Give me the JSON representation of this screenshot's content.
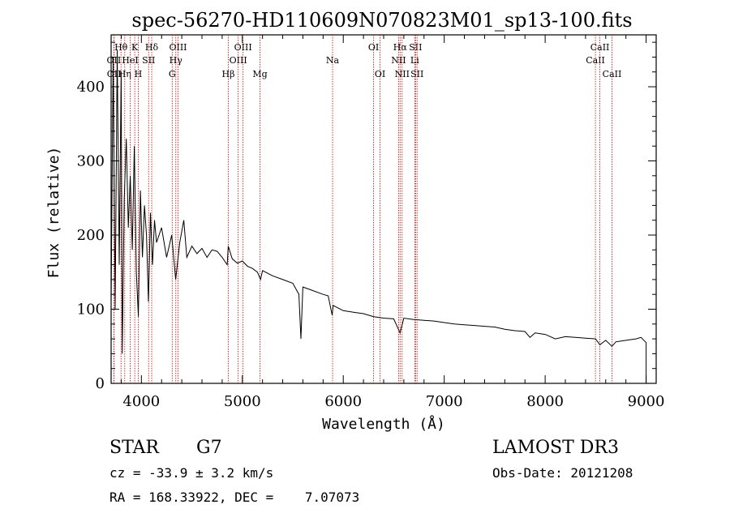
{
  "chart_data": {
    "type": "line",
    "title": "spec-56270-HD110609N070823M01_sp13-100.fits",
    "xlabel": "Wavelength (Å)",
    "ylabel": "Flux (relative)",
    "xlim": [
      3700,
      9100
    ],
    "ylim": [
      0,
      470
    ],
    "xticks": [
      4000,
      5000,
      6000,
      7000,
      8000,
      9000
    ],
    "yticks": [
      0,
      100,
      200,
      300,
      400
    ],
    "series": [
      {
        "name": "flux",
        "points": [
          [
            3700,
            110
          ],
          [
            3720,
            440
          ],
          [
            3740,
            100
          ],
          [
            3760,
            450
          ],
          [
            3780,
            160
          ],
          [
            3800,
            420
          ],
          [
            3810,
            40
          ],
          [
            3830,
            250
          ],
          [
            3850,
            330
          ],
          [
            3870,
            210
          ],
          [
            3890,
            280
          ],
          [
            3910,
            180
          ],
          [
            3930,
            320
          ],
          [
            3950,
            150
          ],
          [
            3970,
            90
          ],
          [
            3990,
            260
          ],
          [
            4010,
            170
          ],
          [
            4030,
            240
          ],
          [
            4050,
            200
          ],
          [
            4070,
            110
          ],
          [
            4090,
            230
          ],
          [
            4110,
            160
          ],
          [
            4130,
            220
          ],
          [
            4150,
            190
          ],
          [
            4200,
            210
          ],
          [
            4250,
            170
          ],
          [
            4300,
            200
          ],
          [
            4340,
            140
          ],
          [
            4380,
            190
          ],
          [
            4420,
            220
          ],
          [
            4450,
            170
          ],
          [
            4500,
            185
          ],
          [
            4550,
            175
          ],
          [
            4600,
            182
          ],
          [
            4650,
            170
          ],
          [
            4700,
            180
          ],
          [
            4750,
            178
          ],
          [
            4800,
            170
          ],
          [
            4850,
            160
          ],
          [
            4860,
            185
          ],
          [
            4900,
            168
          ],
          [
            4950,
            162
          ],
          [
            5000,
            165
          ],
          [
            5050,
            158
          ],
          [
            5100,
            155
          ],
          [
            5150,
            150
          ],
          [
            5180,
            140
          ],
          [
            5200,
            152
          ],
          [
            5300,
            145
          ],
          [
            5400,
            140
          ],
          [
            5500,
            135
          ],
          [
            5560,
            120
          ],
          [
            5580,
            60
          ],
          [
            5600,
            130
          ],
          [
            5700,
            125
          ],
          [
            5800,
            120
          ],
          [
            5850,
            118
          ],
          [
            5890,
            92
          ],
          [
            5900,
            105
          ],
          [
            6000,
            98
          ],
          [
            6100,
            96
          ],
          [
            6200,
            94
          ],
          [
            6300,
            90
          ],
          [
            6400,
            88
          ],
          [
            6500,
            87
          ],
          [
            6562,
            68
          ],
          [
            6600,
            88
          ],
          [
            6700,
            86
          ],
          [
            6800,
            85
          ],
          [
            6900,
            84
          ],
          [
            7000,
            82
          ],
          [
            7100,
            80
          ],
          [
            7200,
            79
          ],
          [
            7300,
            78
          ],
          [
            7400,
            77
          ],
          [
            7500,
            76
          ],
          [
            7600,
            73
          ],
          [
            7700,
            71
          ],
          [
            7800,
            70
          ],
          [
            7850,
            62
          ],
          [
            7900,
            68
          ],
          [
            8000,
            66
          ],
          [
            8100,
            60
          ],
          [
            8200,
            63
          ],
          [
            8300,
            62
          ],
          [
            8400,
            61
          ],
          [
            8500,
            60
          ],
          [
            8542,
            52
          ],
          [
            8600,
            58
          ],
          [
            8662,
            50
          ],
          [
            8700,
            56
          ],
          [
            8800,
            58
          ],
          [
            8900,
            60
          ],
          [
            8950,
            62
          ],
          [
            9000,
            55
          ],
          [
            9000,
            0
          ]
        ]
      }
    ],
    "line_markers": [
      {
        "label": "OII",
        "wavelength": 3727,
        "row": 2
      },
      {
        "label": "OII",
        "wavelength": 3729,
        "row": 3
      },
      {
        "label": "Hθ",
        "wavelength": 3798,
        "row": 1
      },
      {
        "label": "Hη",
        "wavelength": 3835,
        "row": 3
      },
      {
        "label": "HeI",
        "wavelength": 3889,
        "row": 2
      },
      {
        "label": "K",
        "wavelength": 3934,
        "row": 1
      },
      {
        "label": "H",
        "wavelength": 3969,
        "row": 3
      },
      {
        "label": "SII",
        "wavelength": 4072,
        "row": 2
      },
      {
        "label": "Hδ",
        "wavelength": 4102,
        "row": 1
      },
      {
        "label": "G",
        "wavelength": 4305,
        "row": 3
      },
      {
        "label": "Hγ",
        "wavelength": 4341,
        "row": 2
      },
      {
        "label": "OIII",
        "wavelength": 4363,
        "row": 1
      },
      {
        "label": "Hβ",
        "wavelength": 4861,
        "row": 3
      },
      {
        "label": "OIII",
        "wavelength": 4959,
        "row": 2
      },
      {
        "label": "OIII",
        "wavelength": 5007,
        "row": 1
      },
      {
        "label": "Mg",
        "wavelength": 5175,
        "row": 3
      },
      {
        "label": "Na",
        "wavelength": 5894,
        "row": 2
      },
      {
        "label": "OI",
        "wavelength": 6300,
        "row": 1
      },
      {
        "label": "OI",
        "wavelength": 6364,
        "row": 3
      },
      {
        "label": "NII",
        "wavelength": 6548,
        "row": 2
      },
      {
        "label": "Hα",
        "wavelength": 6563,
        "row": 1
      },
      {
        "label": "NII",
        "wavelength": 6583,
        "row": 3
      },
      {
        "label": "Li",
        "wavelength": 6708,
        "row": 2
      },
      {
        "label": "SII",
        "wavelength": 6716,
        "row": 1
      },
      {
        "label": "SII",
        "wavelength": 6731,
        "row": 3
      },
      {
        "label": "CaII",
        "wavelength": 8498,
        "row": 2
      },
      {
        "label": "CaII",
        "wavelength": 8542,
        "row": 1
      },
      {
        "label": "CaII",
        "wavelength": 8662,
        "row": 3
      }
    ]
  },
  "info": {
    "object_class": "STAR",
    "subclass": "G7",
    "survey": "LAMOST DR3",
    "redshift_text": "cz = -33.9 ± 3.2 km/s",
    "obs_date_text": "Obs-Date: 20121208",
    "coords_text": "RA = 168.33922, DEC =    7.07073"
  },
  "colors": {
    "axis": "#000000",
    "spectrum": "#000000",
    "marker_line": "#cc0000"
  }
}
